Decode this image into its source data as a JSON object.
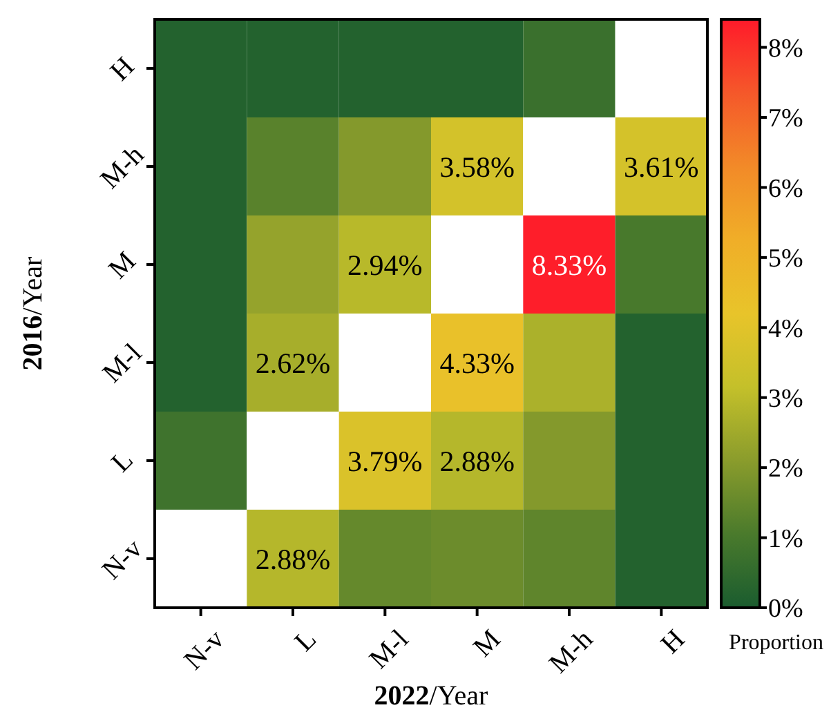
{
  "chart_data": {
    "type": "heatmap",
    "xlabel": "2022/Year",
    "ylabel": "2016/Year",
    "clabel": "Proportion",
    "categories": [
      "N-v",
      "L",
      "M-l",
      "M",
      "M-h",
      "H"
    ],
    "y_categories": [
      "H",
      "M-h",
      "M",
      "M-l",
      "L",
      "N-v"
    ],
    "cells": [
      [
        0.2,
        0.2,
        0.2,
        0.2,
        0.7,
        null
      ],
      [
        0.2,
        1.3,
        2.0,
        3.58,
        null,
        3.61
      ],
      [
        0.2,
        2.3,
        2.94,
        null,
        8.33,
        1.0
      ],
      [
        0.2,
        2.62,
        null,
        4.33,
        2.7,
        0.2
      ],
      [
        0.8,
        null,
        3.79,
        2.88,
        2.0,
        0.2
      ],
      [
        null,
        2.88,
        1.5,
        1.6,
        1.4,
        0.2
      ]
    ],
    "cell_labels": [
      [
        null,
        null,
        null,
        null,
        null,
        null
      ],
      [
        null,
        null,
        null,
        "3.58%",
        null,
        "3.61%"
      ],
      [
        null,
        null,
        "2.94%",
        null,
        "8.33%",
        null
      ],
      [
        null,
        "2.62%",
        null,
        "4.33%",
        null,
        null
      ],
      [
        null,
        null,
        "3.79%",
        "2.88%",
        null,
        null
      ],
      [
        null,
        "2.88%",
        null,
        null,
        null,
        null
      ]
    ],
    "clim": [
      0,
      8.4
    ],
    "cticks": [
      {
        "value": 0,
        "label": "0%"
      },
      {
        "value": 1,
        "label": "1%"
      },
      {
        "value": 2,
        "label": "2%"
      },
      {
        "value": 3,
        "label": "3%"
      },
      {
        "value": 4,
        "label": "4%"
      },
      {
        "value": 5,
        "label": "5%"
      },
      {
        "value": 6,
        "label": "6%"
      },
      {
        "value": 7,
        "label": "7%"
      },
      {
        "value": 8,
        "label": "8%"
      }
    ]
  }
}
